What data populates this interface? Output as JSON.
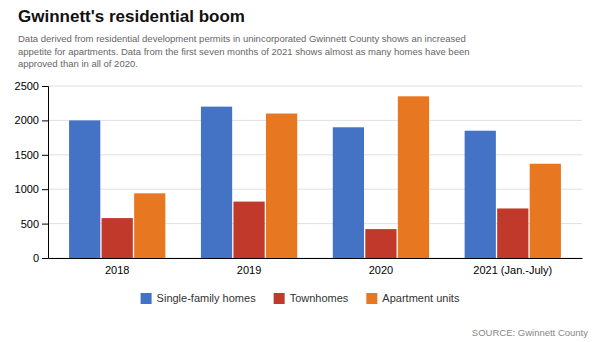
{
  "chart_data": {
    "type": "bar",
    "title": "Gwinnett's residential boom",
    "subtitle": "Data derived from residential development permits in unincorporated Gwinnett County shows an increased\nappetite for apartments. Data from the first seven months of 2021 shows almost as many homes have been\napproved than in all of 2020.",
    "annotations": [
      "SOURCE: Gwinnett County"
    ],
    "categories": [
      "2018",
      "2019",
      "2020",
      "2021 (Jan.-July)"
    ],
    "series": [
      {
        "name": "Single-family homes",
        "color": "#4472C4",
        "values": [
          2000,
          2200,
          1900,
          1850
        ]
      },
      {
        "name": "Townhomes",
        "color": "#C0392B",
        "values": [
          580,
          820,
          420,
          720
        ]
      },
      {
        "name": "Apartment units",
        "color": "#E87722",
        "values": [
          940,
          2100,
          2350,
          1370
        ]
      }
    ],
    "ylim": [
      0,
      2500
    ],
    "yticks": [
      0,
      500,
      1000,
      1500,
      2000,
      2500
    ],
    "grid": true,
    "legend": "bottom"
  }
}
